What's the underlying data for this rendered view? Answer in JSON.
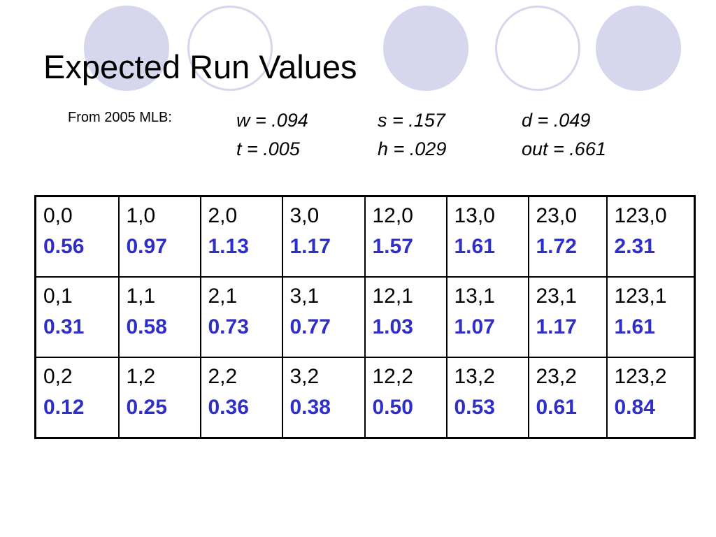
{
  "title": "Expected Run Values",
  "source_note": "From 2005 MLB:",
  "stats": {
    "w": "w =  .094",
    "s": "s = .157",
    "d": "d = .049",
    "t": "t = .005",
    "h": "h = .029",
    "out": "out = .661"
  },
  "colors": {
    "value_text": "#2f2fc8",
    "circle_fill": "#d6d6ec"
  },
  "table": {
    "rows": [
      [
        {
          "state": "0,0",
          "value": "0.56"
        },
        {
          "state": "1,0",
          "value": "0.97"
        },
        {
          "state": "2,0",
          "value": "1.13"
        },
        {
          "state": "3,0",
          "value": "1.17"
        },
        {
          "state": "12,0",
          "value": "1.57"
        },
        {
          "state": "13,0",
          "value": "1.61"
        },
        {
          "state": "23,0",
          "value": "1.72"
        },
        {
          "state": "123,0",
          "value": "2.31"
        }
      ],
      [
        {
          "state": "0,1",
          "value": "0.31"
        },
        {
          "state": "1,1",
          "value": "0.58"
        },
        {
          "state": "2,1",
          "value": "0.73"
        },
        {
          "state": "3,1",
          "value": "0.77"
        },
        {
          "state": "12,1",
          "value": "1.03"
        },
        {
          "state": "13,1",
          "value": "1.07"
        },
        {
          "state": "23,1",
          "value": "1.17"
        },
        {
          "state": "123,1",
          "value": "1.61"
        }
      ],
      [
        {
          "state": "0,2",
          "value": "0.12"
        },
        {
          "state": "1,2",
          "value": "0.25"
        },
        {
          "state": "2,2",
          "value": "0.36"
        },
        {
          "state": "3,2",
          "value": "0.38"
        },
        {
          "state": "12,2",
          "value": "0.50"
        },
        {
          "state": "13,2",
          "value": "0.53"
        },
        {
          "state": "23,2",
          "value": "0.61"
        },
        {
          "state": "123,2",
          "value": "0.84"
        }
      ]
    ]
  }
}
